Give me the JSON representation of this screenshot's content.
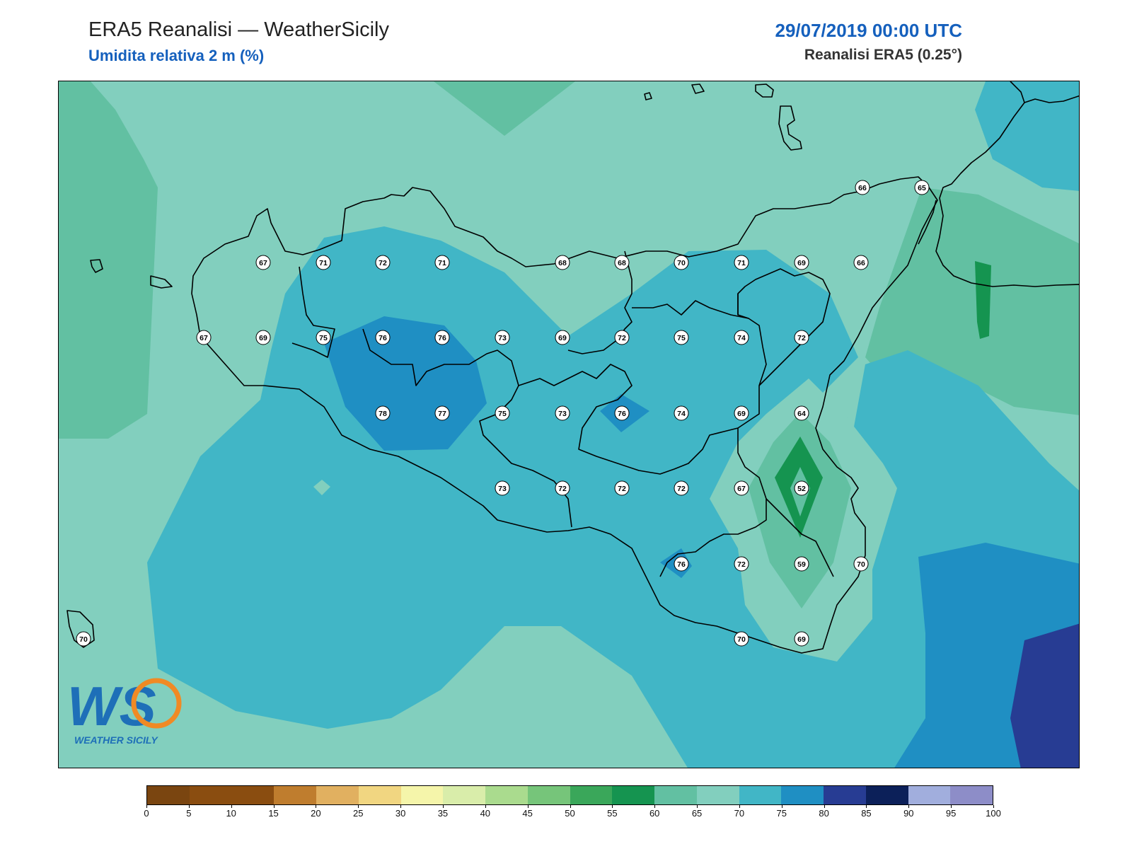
{
  "header": {
    "title": "ERA5 Reanalisi — WeatherSicily",
    "subtitle": "Umidita relativa 2 m (%)",
    "datetime": "29/07/2019 00:00 UTC",
    "source": "Reanalisi ERA5 (0.25°)"
  },
  "logo": {
    "letters": "WS",
    "name": "WEATHER SICILY"
  },
  "colorbar": {
    "ticks": [
      "0",
      "5",
      "10",
      "15",
      "20",
      "25",
      "30",
      "35",
      "40",
      "45",
      "50",
      "55",
      "60",
      "65",
      "70",
      "75",
      "80",
      "85",
      "90",
      "95",
      "100"
    ],
    "colors": [
      "#7a4510",
      "#8a4d10",
      "#8a4d10",
      "#bf7d2e",
      "#e1b060",
      "#f1d681",
      "#f5f5aa",
      "#d9edaa",
      "#aadb8e",
      "#76c57a",
      "#3aa75a",
      "#159450",
      "#62c0a2",
      "#82cfbe",
      "#41b6c6",
      "#1f8fc3",
      "#273c93",
      "#0c2059",
      "#a1aedd",
      "#8d8dc8"
    ],
    "range": [
      0,
      100
    ]
  },
  "map": {
    "region": "Sicily",
    "variable": "relative humidity 2 m",
    "unit": "%",
    "fill_colors": {
      "c50_55": "#159450",
      "c60_65": "#62c0a2",
      "c65_70": "#82cfbe",
      "c70_75": "#41b6c6",
      "c75_80": "#1f8fc3",
      "c80_85": "#273c93"
    },
    "stations": [
      {
        "value": "66"
      },
      {
        "value": "65"
      },
      {
        "value": "67"
      },
      {
        "value": "71"
      },
      {
        "value": "72"
      },
      {
        "value": "71"
      },
      {
        "value": "68"
      },
      {
        "value": "68"
      },
      {
        "value": "70"
      },
      {
        "value": "71"
      },
      {
        "value": "69"
      },
      {
        "value": "66"
      },
      {
        "value": "67"
      },
      {
        "value": "69"
      },
      {
        "value": "75"
      },
      {
        "value": "76"
      },
      {
        "value": "76"
      },
      {
        "value": "73"
      },
      {
        "value": "69"
      },
      {
        "value": "72"
      },
      {
        "value": "75"
      },
      {
        "value": "74"
      },
      {
        "value": "72"
      },
      {
        "value": "78"
      },
      {
        "value": "77"
      },
      {
        "value": "75"
      },
      {
        "value": "73"
      },
      {
        "value": "76"
      },
      {
        "value": "74"
      },
      {
        "value": "69"
      },
      {
        "value": "64"
      },
      {
        "value": "73"
      },
      {
        "value": "72"
      },
      {
        "value": "72"
      },
      {
        "value": "72"
      },
      {
        "value": "67"
      },
      {
        "value": "52"
      },
      {
        "value": "76"
      },
      {
        "value": "72"
      },
      {
        "value": "59"
      },
      {
        "value": "70"
      },
      {
        "value": "70"
      },
      {
        "value": "70"
      },
      {
        "value": "69"
      }
    ]
  }
}
